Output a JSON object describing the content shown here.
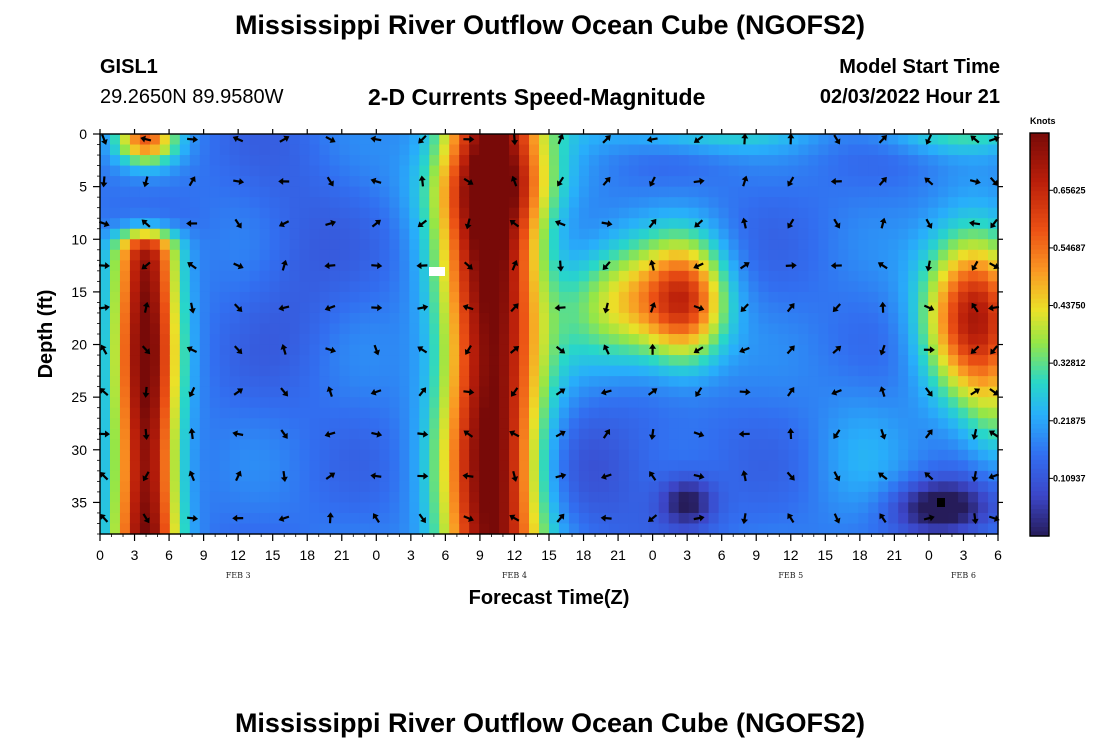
{
  "header": {
    "title": "Mississippi River Outflow Ocean Cube (NGOFS2)",
    "station_id": "GISL1",
    "coordinates": "29.2650N  89.9580W",
    "subtitle": "2-D Currents Speed-Magnitude",
    "model_start_label": "Model Start Time",
    "model_start_value": "02/03/2022 Hour 21"
  },
  "footer": {
    "title": "Mississippi River Outflow Ocean Cube (NGOFS2)"
  },
  "chart_data": {
    "type": "heatmap",
    "title": "2-D Currents Speed-Magnitude",
    "xlabel": "Forecast Time(Z)",
    "ylabel": "Depth (ft)",
    "colorbar_label": "Knots",
    "colorbar_ticks": [
      "0.10937",
      "0.21875",
      "0.32812",
      "0.43750",
      "0.54687",
      "0.65625"
    ],
    "colorbar_range": [
      0,
      0.765
    ],
    "x_range_hours": [
      0,
      78
    ],
    "y_range_ft": [
      0,
      38
    ],
    "y_reversed": true,
    "x_tick_labels": [
      "0",
      "3",
      "6",
      "9",
      "12",
      "15",
      "18",
      "21",
      "0",
      "3",
      "6",
      "9",
      "12",
      "15",
      "18",
      "21",
      "0",
      "3",
      "6",
      "9",
      "12",
      "15",
      "18",
      "21",
      "0",
      "3",
      "6"
    ],
    "y_ticks": [
      0,
      5,
      10,
      15,
      20,
      25,
      30,
      35
    ],
    "date_labels": [
      {
        "label": "FEB 3",
        "hour": 12
      },
      {
        "label": "FEB 4",
        "hour": 36
      },
      {
        "label": "FEB 5",
        "hour": 60
      },
      {
        "label": "FEB 6",
        "hour": 75
      }
    ],
    "arrow_times_hours": [
      0,
      4,
      8,
      12,
      16,
      20,
      24,
      28,
      32,
      36,
      40,
      44,
      48,
      52,
      56,
      60,
      64,
      68,
      72,
      76,
      78
    ],
    "arrow_depths_ft": [
      0,
      4,
      8,
      12,
      16,
      20,
      24,
      28,
      32,
      36
    ],
    "speed_features": [
      {
        "name": "column",
        "hour": 4,
        "depth_from": 9,
        "depth_to": 38,
        "speed": 0.74
      },
      {
        "name": "surface-cap",
        "hour": 4,
        "depth_from": 0,
        "depth_to": 3,
        "speed": 0.5
      },
      {
        "name": "column",
        "hour": 34,
        "depth_from": 0,
        "depth_to": 38,
        "speed": 0.76
      },
      {
        "name": "blob",
        "hour": 51,
        "depth_from": 10,
        "depth_to": 22,
        "speed": 0.62
      },
      {
        "name": "ring",
        "hour": 45,
        "depth_from": 11,
        "depth_to": 21,
        "speed": 0.42
      },
      {
        "name": "blob",
        "hour": 76,
        "depth_from": 10,
        "depth_to": 24,
        "speed": 0.6
      },
      {
        "name": "trough",
        "hour": 51,
        "depth_from": 33,
        "depth_to": 38,
        "speed": 0.03
      },
      {
        "name": "trough",
        "hour": 73,
        "depth_from": 33,
        "depth_to": 38,
        "speed": 0.02
      }
    ]
  }
}
